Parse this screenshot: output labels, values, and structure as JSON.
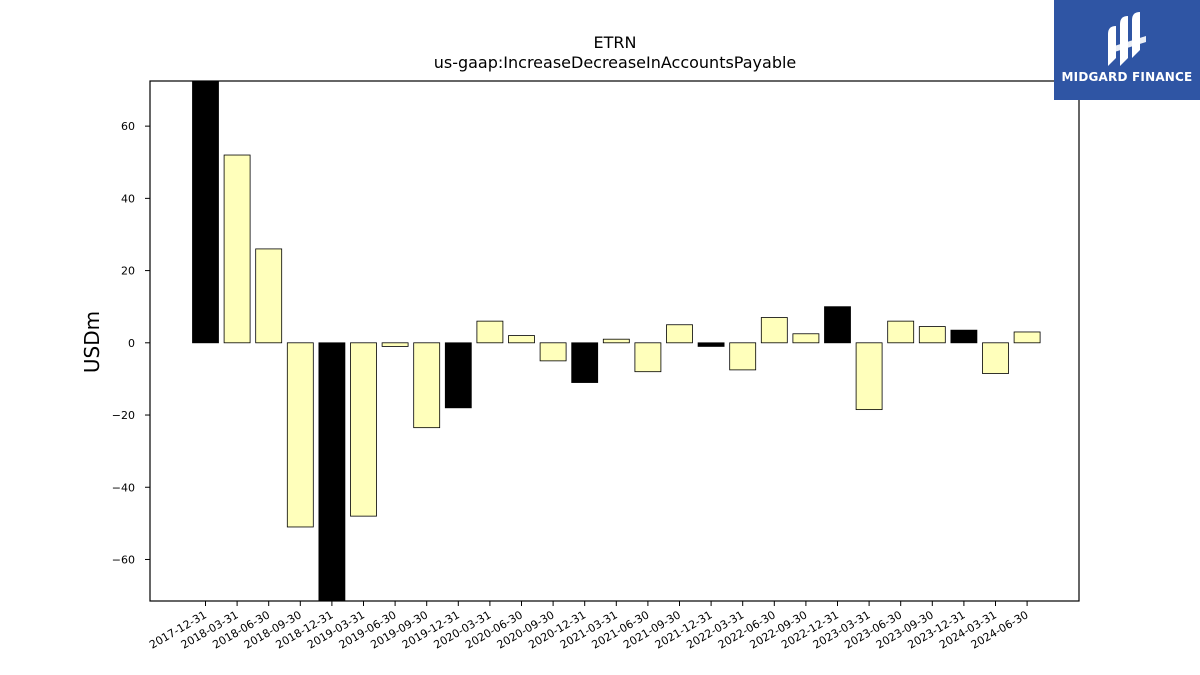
{
  "chart_data": {
    "type": "bar",
    "title": "ETRN",
    "subtitle": "us-gaap:IncreaseDecreaseInAccountsPayable",
    "xlabel": "",
    "ylabel": "USDm",
    "ylim": [
      -71.5,
      72.5
    ],
    "yticks": [
      -60,
      -40,
      -20,
      0,
      20,
      40,
      60
    ],
    "ytick_labels": [
      "−60",
      "−40",
      "−20",
      "0",
      "20",
      "40",
      "60"
    ],
    "grid": false,
    "legend": "none",
    "categories": [
      "2017-12-31",
      "2018-03-31",
      "2018-06-30",
      "2018-09-30",
      "2018-12-31",
      "2019-03-31",
      "2019-06-30",
      "2019-09-30",
      "2019-12-31",
      "2020-03-31",
      "2020-06-30",
      "2020-09-30",
      "2020-12-31",
      "2021-03-31",
      "2021-06-30",
      "2021-09-30",
      "2021-12-31",
      "2022-03-31",
      "2022-06-30",
      "2022-09-30",
      "2022-12-31",
      "2023-03-31",
      "2023-06-30",
      "2023-09-30",
      "2023-12-31",
      "2024-03-31",
      "2024-06-30"
    ],
    "values": [
      72.5,
      52,
      26,
      -51,
      -71.5,
      -48,
      -1,
      -23.5,
      -18,
      6,
      2,
      -5,
      -11,
      1,
      -8,
      5,
      -1,
      -7.5,
      7,
      2.5,
      10,
      -18.5,
      6,
      4.5,
      3.5,
      -8.5,
      3
    ],
    "bar_colors": [
      "#000000",
      "#ffffbb",
      "#ffffbb",
      "#ffffbb",
      "#000000",
      "#ffffbb",
      "#ffffbb",
      "#ffffbb",
      "#000000",
      "#ffffbb",
      "#ffffbb",
      "#ffffbb",
      "#000000",
      "#ffffbb",
      "#ffffbb",
      "#ffffbb",
      "#000000",
      "#ffffbb",
      "#ffffbb",
      "#ffffbb",
      "#000000",
      "#ffffbb",
      "#ffffbb",
      "#ffffbb",
      "#000000",
      "#ffffbb",
      "#ffffbb"
    ]
  },
  "logo": {
    "text": "MIDGARD FINANCE",
    "background": "#2f55a4"
  }
}
